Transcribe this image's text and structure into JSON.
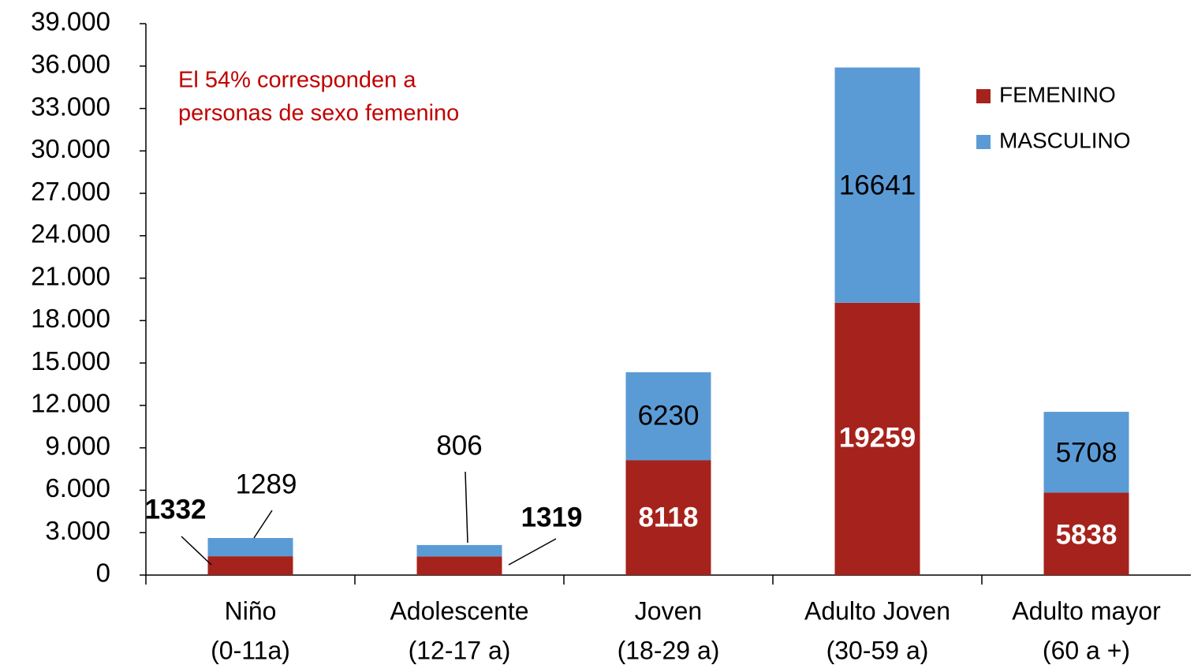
{
  "chart_data": {
    "type": "stacked_bar",
    "annotation": [
      "El 54%  corresponden  a",
      "personas de sexo femenino"
    ],
    "categories": [
      [
        "Niño",
        "(0-11a)"
      ],
      [
        "Adolescente",
        "(12-17 a)"
      ],
      [
        "Joven",
        "(18-29 a)"
      ],
      [
        "Adulto Joven",
        "(30-59 a)"
      ],
      [
        "Adulto mayor",
        "(60 a +)"
      ]
    ],
    "series": [
      {
        "name": "FEMENINO",
        "color": "#a5231c",
        "values": [
          1332,
          1319,
          8118,
          19259,
          5838
        ]
      },
      {
        "name": "MASCULINO",
        "color": "#5b9bd5",
        "values": [
          1289,
          806,
          6230,
          16641,
          5708
        ]
      }
    ],
    "ylim": [
      0,
      39000
    ],
    "yticks": [
      0,
      {
        "value": 3000,
        "label": "3.000"
      },
      {
        "value": 6000,
        "label": "6.000"
      },
      {
        "value": 9000,
        "label": "9.000"
      },
      {
        "value": 12000,
        "label": "12.000"
      },
      {
        "value": 15000,
        "label": "15.000"
      },
      {
        "value": 18000,
        "label": "18.000"
      },
      {
        "value": 21000,
        "label": "21.000"
      },
      {
        "value": 24000,
        "label": "24.000"
      },
      {
        "value": 27000,
        "label": "27.000"
      },
      {
        "value": 30000,
        "label": "30.000"
      },
      {
        "value": 33000,
        "label": "33.000"
      },
      {
        "value": 36000,
        "label": "36.000"
      },
      {
        "value": 39000,
        "label": "39.000"
      }
    ],
    "legend": "top-right"
  }
}
